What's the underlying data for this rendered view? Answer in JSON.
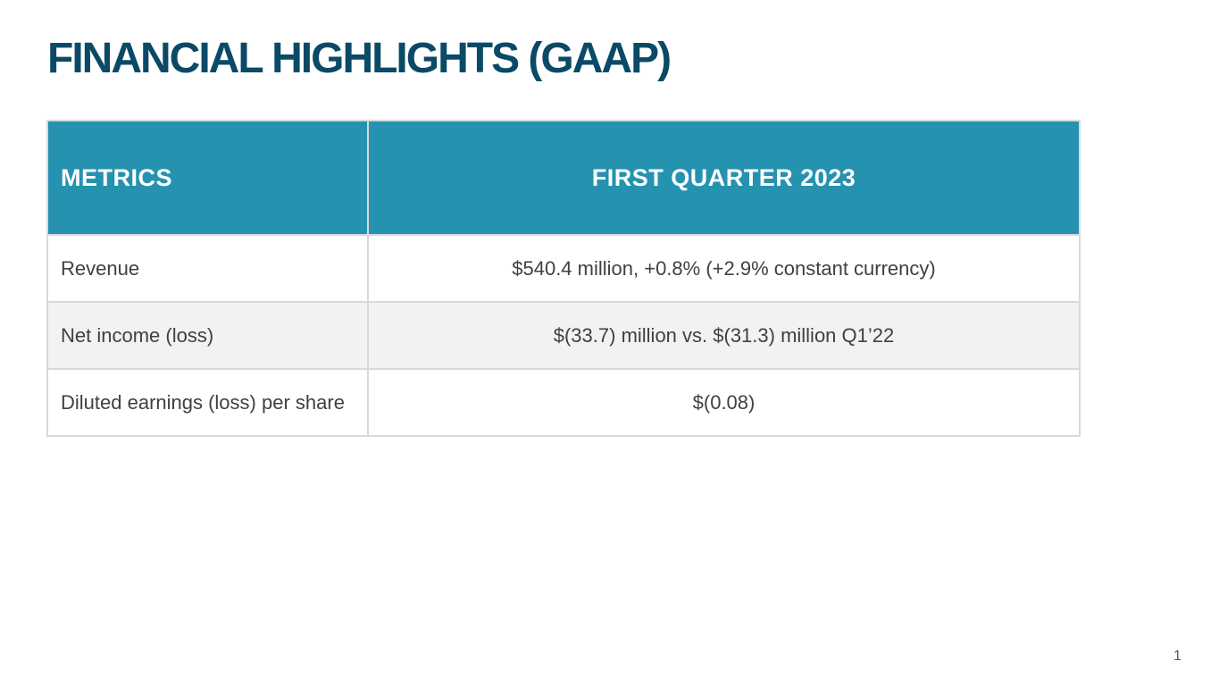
{
  "title": "FINANCIAL HIGHLIGHTS (GAAP)",
  "table": {
    "headers": {
      "metric": "METRICS",
      "value": "FIRST QUARTER 2023"
    },
    "rows": [
      {
        "metric": "Revenue",
        "value": "$540.4 million, +0.8% (+2.9% constant currency)"
      },
      {
        "metric": "Net income (loss)",
        "value": "$(33.7) million vs. $(31.3) million Q1’22"
      },
      {
        "metric": "Diluted earnings (loss) per share",
        "value": "$(0.08)"
      }
    ],
    "colors": {
      "header_bg": "#2592b0",
      "header_text": "#ffffff",
      "alt_row_bg": "#f2f2f2",
      "border": "#d9d9d9"
    }
  },
  "title_color": "#0a4a66",
  "page_number": "1"
}
